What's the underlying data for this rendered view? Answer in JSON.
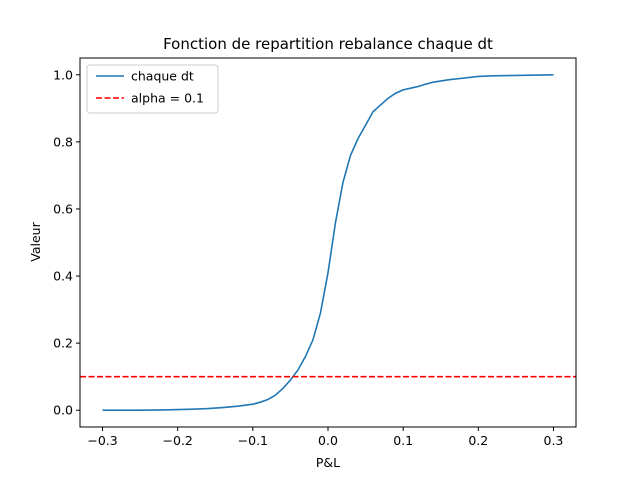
{
  "chart_data": {
    "type": "line",
    "title": "Fonction de repartition rebalance chaque dt",
    "xlabel": "P&L",
    "ylabel": "Valeur",
    "xlim": [
      -0.33,
      0.33
    ],
    "ylim": [
      -0.05,
      1.05
    ],
    "xticks": [
      -0.3,
      -0.2,
      -0.1,
      0.0,
      0.1,
      0.2,
      0.3
    ],
    "xtick_labels": [
      "−0.3",
      "−0.2",
      "−0.1",
      "0.0",
      "0.1",
      "0.2",
      "0.3"
    ],
    "yticks": [
      0.0,
      0.2,
      0.4,
      0.6,
      0.8,
      1.0
    ],
    "ytick_labels": [
      "0.0",
      "0.2",
      "0.4",
      "0.6",
      "0.8",
      "1.0"
    ],
    "grid": false,
    "legend_position": "upper-left",
    "series": [
      {
        "name": "chaque dt",
        "color": "#1f77b4",
        "style": "solid",
        "x": [
          -0.3,
          -0.25,
          -0.22,
          -0.2,
          -0.18,
          -0.16,
          -0.14,
          -0.12,
          -0.1,
          -0.09,
          -0.08,
          -0.07,
          -0.06,
          -0.05,
          -0.04,
          -0.03,
          -0.02,
          -0.01,
          0.0,
          0.01,
          0.02,
          0.03,
          0.04,
          0.05,
          0.06,
          0.07,
          0.08,
          0.09,
          0.1,
          0.11,
          0.12,
          0.13,
          0.14,
          0.16,
          0.18,
          0.2,
          0.22,
          0.25,
          0.28,
          0.3
        ],
        "y": [
          0.0,
          0.0,
          0.001,
          0.002,
          0.003,
          0.005,
          0.008,
          0.012,
          0.018,
          0.024,
          0.032,
          0.045,
          0.065,
          0.09,
          0.12,
          0.16,
          0.21,
          0.29,
          0.41,
          0.56,
          0.68,
          0.76,
          0.81,
          0.85,
          0.89,
          0.91,
          0.93,
          0.945,
          0.955,
          0.96,
          0.965,
          0.972,
          0.978,
          0.985,
          0.99,
          0.995,
          0.997,
          0.998,
          0.999,
          1.0
        ]
      },
      {
        "name": "alpha = 0.1",
        "color": "#ff0000",
        "style": "dashed",
        "x": [
          -0.33,
          0.33
        ],
        "y": [
          0.1,
          0.1
        ]
      }
    ]
  }
}
